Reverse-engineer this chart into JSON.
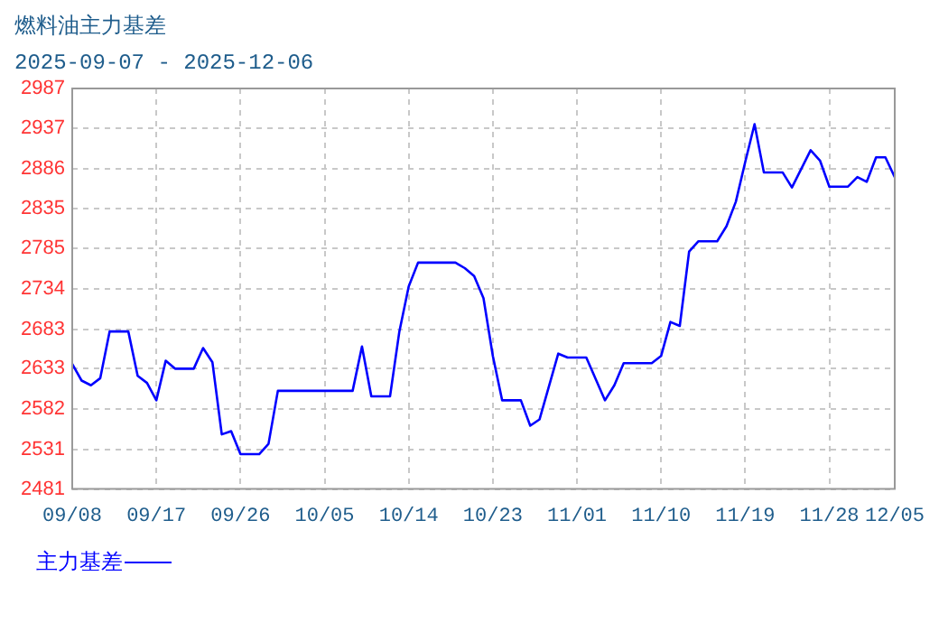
{
  "chart_data": {
    "type": "line",
    "title": "燃料油主力基差",
    "subtitle": "2025-09-07 - 2025-12-06",
    "x": [
      "2025-09-08",
      "2025-09-09",
      "2025-09-10",
      "2025-09-11",
      "2025-09-12",
      "2025-09-14",
      "2025-09-15",
      "2025-09-16",
      "2025-09-17",
      "2025-09-18",
      "2025-09-19",
      "2025-09-21",
      "2025-09-22",
      "2025-09-23",
      "2025-09-24",
      "2025-09-25",
      "2025-09-26",
      "2025-09-28",
      "2025-09-29",
      "2025-09-30",
      "2025-10-08",
      "2025-10-09",
      "2025-10-10",
      "2025-10-12",
      "2025-10-13",
      "2025-10-14",
      "2025-10-15",
      "2025-10-19",
      "2025-10-20",
      "2025-10-21",
      "2025-10-22",
      "2025-10-23",
      "2025-10-24",
      "2025-10-26",
      "2025-10-27",
      "2025-10-28",
      "2025-10-30",
      "2025-10-31",
      "2025-11-02",
      "2025-11-04",
      "2025-11-05",
      "2025-11-06",
      "2025-11-09",
      "2025-11-10",
      "2025-11-11",
      "2025-11-12",
      "2025-11-13",
      "2025-11-14",
      "2025-11-16",
      "2025-11-17",
      "2025-11-18",
      "2025-11-19",
      "2025-11-20",
      "2025-11-21",
      "2025-11-23",
      "2025-11-24",
      "2025-11-26",
      "2025-11-27",
      "2025-11-28",
      "2025-11-30",
      "2025-12-01",
      "2025-12-02",
      "2025-12-03",
      "2025-12-04",
      "2025-12-05"
    ],
    "series": [
      {
        "name": "主力基差",
        "color": "#0000ff",
        "values": [
          2639,
          2618,
          2612,
          2621,
          2680,
          2680,
          2624,
          2615,
          2593,
          2643,
          2633,
          2633,
          2659,
          2641,
          2550,
          2554,
          2525,
          2525,
          2538,
          2605,
          2605,
          2661,
          2598,
          2598,
          2680,
          2737,
          2767,
          2767,
          2760,
          2750,
          2722,
          2649,
          2593,
          2593,
          2561,
          2569,
          2652,
          2647,
          2647,
          2593,
          2612,
          2640,
          2640,
          2649,
          2692,
          2687,
          2781,
          2794,
          2794,
          2813,
          2844,
          2894,
          2942,
          2881,
          2881,
          2862,
          2909,
          2896,
          2863,
          2863,
          2875,
          2869,
          2900,
          2900,
          2875
        ]
      }
    ],
    "xlim": [
      "2025-09-08",
      "2025-12-05"
    ],
    "xticks": [
      {
        "value": "2025-09-08",
        "label": "09/08"
      },
      {
        "value": "2025-09-17",
        "label": "09/17"
      },
      {
        "value": "2025-09-26",
        "label": "09/26"
      },
      {
        "value": "2025-10-05",
        "label": "10/05"
      },
      {
        "value": "2025-10-14",
        "label": "10/14"
      },
      {
        "value": "2025-10-23",
        "label": "10/23"
      },
      {
        "value": "2025-11-01",
        "label": "11/01"
      },
      {
        "value": "2025-11-10",
        "label": "11/10"
      },
      {
        "value": "2025-11-19",
        "label": "11/19"
      },
      {
        "value": "2025-11-28",
        "label": "11/28"
      },
      {
        "value": "2025-12-05",
        "label": "12/05"
      }
    ],
    "ylim": [
      2481,
      2987
    ],
    "yticks": [
      2481,
      2531,
      2582,
      2633,
      2683,
      2734,
      2785,
      2835,
      2886,
      2937,
      2987
    ],
    "grid": true,
    "legend": "bottom left",
    "marker": "none",
    "line_style": "solid"
  }
}
